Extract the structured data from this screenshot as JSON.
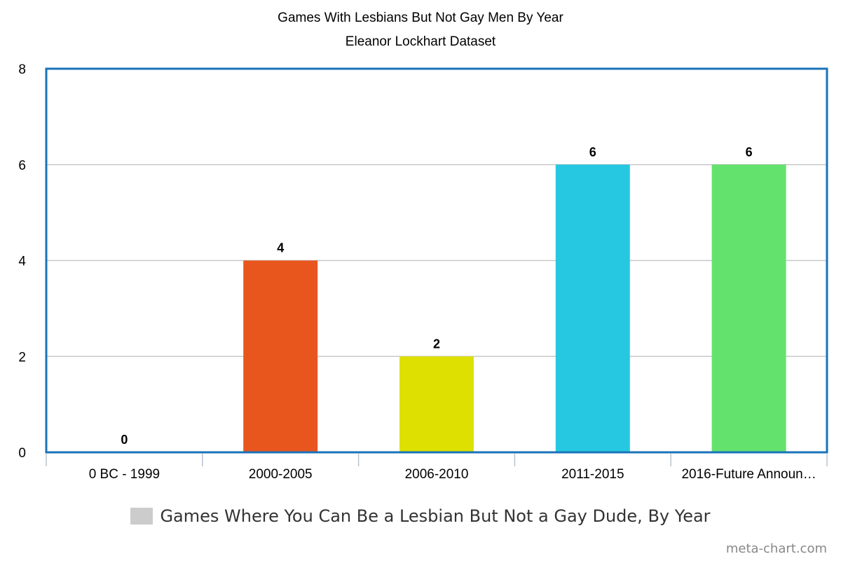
{
  "chart_data": {
    "type": "bar",
    "title": "Games With Lesbians But Not Gay Men By Year",
    "subtitle": "Eleanor Lockhart Dataset",
    "categories": [
      "0 BC - 1999",
      "2000-2005",
      "2006-2010",
      "2011-2015",
      "2016-Future Announ…"
    ],
    "series": [
      {
        "name": "Games Where You Can Be a Lesbian But Not a Gay Dude, By Year",
        "values": [
          0,
          4,
          2,
          6,
          6
        ]
      }
    ],
    "data_labels": [
      "0",
      "4",
      "2",
      "6",
      "6"
    ],
    "bar_colors": [
      "#cccccc",
      "#e8561e",
      "#dde000",
      "#26c8e1",
      "#64e26e"
    ],
    "ylim": [
      0,
      8
    ],
    "yticks": [
      0,
      2,
      4,
      6,
      8
    ],
    "ytick_labels": [
      "0",
      "2",
      "4",
      "6",
      "8"
    ],
    "grid": true,
    "legend_position": "bottom",
    "frame_color": "#1a73b8",
    "legend_swatch_color": "#cccccc"
  },
  "watermark": "meta-chart.com"
}
